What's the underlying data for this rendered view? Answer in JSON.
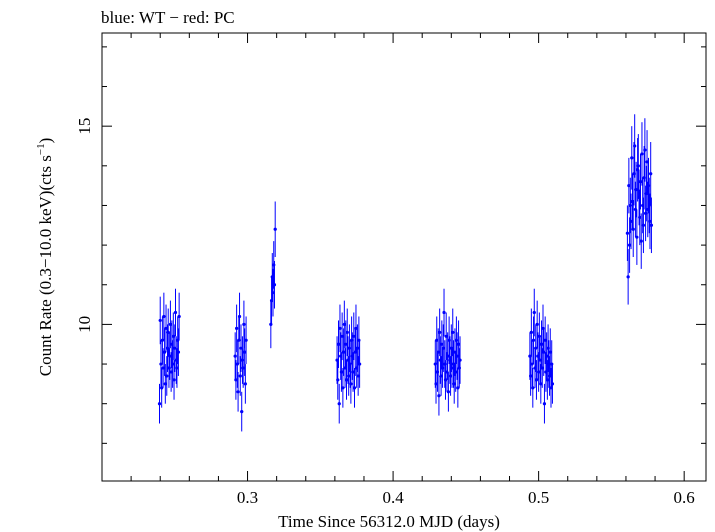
{
  "chart_data": {
    "type": "scatter",
    "title": "blue: WT − red: PC",
    "xlabel": "Time Since 56312.0 MJD (days)",
    "ylabel_main": "Count Rate (0.3−10.0 keV)(cts s",
    "ylabel_sup": "−1",
    "ylabel_tail": ")",
    "xlim": [
      0.2,
      0.615
    ],
    "ylim": [
      6.05,
      17.35
    ],
    "x_major_ticks": [
      0.3,
      0.4,
      0.5,
      0.6
    ],
    "x_tick_labels": [
      "0.3",
      "0.4",
      "0.5",
      "0.6"
    ],
    "y_major_ticks": [
      10,
      15
    ],
    "y_tick_labels": [
      "10",
      "15"
    ],
    "grid": false,
    "series": [
      {
        "color": "#0000ff",
        "points": [
          [
            0.2395,
            8.0,
            0.5
          ],
          [
            0.24,
            10.1,
            0.6
          ],
          [
            0.2405,
            9.0,
            0.6
          ],
          [
            0.241,
            8.4,
            0.5
          ],
          [
            0.2415,
            9.6,
            0.6
          ],
          [
            0.242,
            8.9,
            0.5
          ],
          [
            0.2425,
            10.2,
            0.6
          ],
          [
            0.243,
            9.3,
            0.6
          ],
          [
            0.2435,
            8.5,
            0.5
          ],
          [
            0.244,
            9.9,
            0.6
          ],
          [
            0.2445,
            8.7,
            0.5
          ],
          [
            0.245,
            9.4,
            0.6
          ],
          [
            0.2455,
            9.8,
            0.6
          ],
          [
            0.246,
            8.9,
            0.5
          ],
          [
            0.2465,
            9.2,
            0.6
          ],
          [
            0.247,
            10.0,
            0.6
          ],
          [
            0.2475,
            8.8,
            0.5
          ],
          [
            0.248,
            9.5,
            0.6
          ],
          [
            0.2485,
            9.0,
            0.6
          ],
          [
            0.249,
            9.7,
            0.6
          ],
          [
            0.2495,
            8.6,
            0.5
          ],
          [
            0.25,
            9.4,
            0.6
          ],
          [
            0.2505,
            10.3,
            0.6
          ],
          [
            0.251,
            9.1,
            0.6
          ],
          [
            0.2515,
            8.9,
            0.5
          ],
          [
            0.252,
            9.6,
            0.6
          ],
          [
            0.2525,
            9.3,
            0.6
          ],
          [
            0.253,
            10.2,
            0.6
          ],
          [
            0.2915,
            9.2,
            0.6
          ],
          [
            0.292,
            8.6,
            0.5
          ],
          [
            0.2925,
            9.9,
            0.6
          ],
          [
            0.293,
            9.0,
            0.6
          ],
          [
            0.2935,
            8.3,
            0.5
          ],
          [
            0.294,
            9.6,
            0.6
          ],
          [
            0.2945,
            10.2,
            0.6
          ],
          [
            0.295,
            8.7,
            0.5
          ],
          [
            0.2955,
            9.4,
            0.6
          ],
          [
            0.296,
            7.8,
            0.5
          ],
          [
            0.2965,
            9.1,
            0.6
          ],
          [
            0.297,
            8.9,
            0.5
          ],
          [
            0.2975,
            10.0,
            0.6
          ],
          [
            0.298,
            9.3,
            0.6
          ],
          [
            0.2985,
            8.5,
            0.5
          ],
          [
            0.299,
            9.6,
            0.6
          ],
          [
            0.316,
            10.0,
            0.6
          ],
          [
            0.3165,
            10.6,
            0.6
          ],
          [
            0.317,
            11.2,
            0.6
          ],
          [
            0.3175,
            10.8,
            0.6
          ],
          [
            0.318,
            11.5,
            0.6
          ],
          [
            0.3185,
            11.0,
            0.6
          ],
          [
            0.319,
            12.4,
            0.7
          ],
          [
            0.3615,
            9.1,
            0.6
          ],
          [
            0.362,
            8.6,
            0.5
          ],
          [
            0.3625,
            9.5,
            0.6
          ],
          [
            0.363,
            8.0,
            0.5
          ],
          [
            0.3635,
            9.9,
            0.6
          ],
          [
            0.364,
            9.2,
            0.6
          ],
          [
            0.3645,
            8.8,
            0.5
          ],
          [
            0.365,
            9.7,
            0.6
          ],
          [
            0.3655,
            8.4,
            0.5
          ],
          [
            0.366,
            9.3,
            0.6
          ],
          [
            0.3665,
            10.0,
            0.6
          ],
          [
            0.367,
            8.9,
            0.5
          ],
          [
            0.3675,
            9.5,
            0.6
          ],
          [
            0.368,
            8.6,
            0.5
          ],
          [
            0.3685,
            9.8,
            0.6
          ],
          [
            0.369,
            9.1,
            0.6
          ],
          [
            0.3695,
            8.7,
            0.5
          ],
          [
            0.37,
            9.4,
            0.6
          ],
          [
            0.3705,
            9.0,
            0.6
          ],
          [
            0.371,
            8.5,
            0.5
          ],
          [
            0.3715,
            9.6,
            0.6
          ],
          [
            0.372,
            9.2,
            0.6
          ],
          [
            0.3725,
            8.8,
            0.5
          ],
          [
            0.373,
            9.7,
            0.6
          ],
          [
            0.3735,
            8.4,
            0.5
          ],
          [
            0.374,
            9.3,
            0.6
          ],
          [
            0.3745,
            9.9,
            0.6
          ],
          [
            0.375,
            8.9,
            0.5
          ],
          [
            0.3755,
            9.4,
            0.6
          ],
          [
            0.376,
            8.7,
            0.5
          ],
          [
            0.3765,
            9.6,
            0.6
          ],
          [
            0.377,
            9.0,
            0.6
          ],
          [
            0.429,
            9.0,
            0.6
          ],
          [
            0.4295,
            8.5,
            0.5
          ],
          [
            0.43,
            9.6,
            0.6
          ],
          [
            0.4305,
            8.8,
            0.5
          ],
          [
            0.431,
            9.3,
            0.6
          ],
          [
            0.4315,
            8.2,
            0.5
          ],
          [
            0.432,
            9.8,
            0.6
          ],
          [
            0.4325,
            9.1,
            0.6
          ],
          [
            0.433,
            8.7,
            0.5
          ],
          [
            0.4335,
            9.5,
            0.6
          ],
          [
            0.434,
            8.9,
            0.5
          ],
          [
            0.4345,
            9.4,
            0.6
          ],
          [
            0.435,
            10.3,
            0.6
          ],
          [
            0.4355,
            9.0,
            0.6
          ],
          [
            0.436,
            8.6,
            0.5
          ],
          [
            0.4365,
            9.7,
            0.6
          ],
          [
            0.437,
            8.8,
            0.5
          ],
          [
            0.4375,
            9.2,
            0.6
          ],
          [
            0.438,
            8.3,
            0.5
          ],
          [
            0.4385,
            9.6,
            0.6
          ],
          [
            0.439,
            9.1,
            0.6
          ],
          [
            0.4395,
            8.7,
            0.5
          ],
          [
            0.44,
            9.4,
            0.6
          ],
          [
            0.4405,
            8.9,
            0.5
          ],
          [
            0.441,
            9.8,
            0.6
          ],
          [
            0.4415,
            9.0,
            0.6
          ],
          [
            0.442,
            8.5,
            0.5
          ],
          [
            0.4425,
            9.3,
            0.6
          ],
          [
            0.443,
            8.8,
            0.5
          ],
          [
            0.4435,
            9.6,
            0.6
          ],
          [
            0.444,
            9.2,
            0.6
          ],
          [
            0.4445,
            8.4,
            0.5
          ],
          [
            0.445,
            9.5,
            0.6
          ],
          [
            0.4455,
            8.9,
            0.5
          ],
          [
            0.446,
            9.1,
            0.6
          ],
          [
            0.494,
            9.2,
            0.6
          ],
          [
            0.4945,
            8.7,
            0.5
          ],
          [
            0.495,
            9.8,
            0.6
          ],
          [
            0.4955,
            9.0,
            0.6
          ],
          [
            0.496,
            8.4,
            0.5
          ],
          [
            0.4965,
            9.6,
            0.6
          ],
          [
            0.497,
            10.3,
            0.6
          ],
          [
            0.4975,
            8.9,
            0.5
          ],
          [
            0.498,
            9.4,
            0.6
          ],
          [
            0.4985,
            8.6,
            0.5
          ],
          [
            0.499,
            10.0,
            0.6
          ],
          [
            0.4995,
            9.2,
            0.6
          ],
          [
            0.5,
            8.8,
            0.5
          ],
          [
            0.5005,
            9.7,
            0.6
          ],
          [
            0.501,
            9.1,
            0.6
          ],
          [
            0.5015,
            8.5,
            0.5
          ],
          [
            0.502,
            9.5,
            0.6
          ],
          [
            0.5025,
            8.9,
            0.5
          ],
          [
            0.503,
            9.9,
            0.6
          ],
          [
            0.5035,
            9.3,
            0.6
          ],
          [
            0.504,
            8.0,
            0.5
          ],
          [
            0.5045,
            9.6,
            0.6
          ],
          [
            0.505,
            8.8,
            0.5
          ],
          [
            0.5055,
            9.2,
            0.6
          ],
          [
            0.506,
            8.6,
            0.5
          ],
          [
            0.5065,
            9.4,
            0.6
          ],
          [
            0.507,
            9.0,
            0.6
          ],
          [
            0.5075,
            8.7,
            0.5
          ],
          [
            0.508,
            9.3,
            0.6
          ],
          [
            0.5085,
            8.4,
            0.5
          ],
          [
            0.509,
            9.0,
            0.6
          ],
          [
            0.5095,
            8.5,
            0.5
          ],
          [
            0.561,
            12.3,
            0.7
          ],
          [
            0.5615,
            11.2,
            0.7
          ],
          [
            0.562,
            13.5,
            0.7
          ],
          [
            0.5625,
            12.0,
            0.7
          ],
          [
            0.563,
            13.0,
            0.7
          ],
          [
            0.5635,
            12.6,
            0.7
          ],
          [
            0.564,
            14.2,
            0.8
          ],
          [
            0.5645,
            13.1,
            0.7
          ],
          [
            0.565,
            12.4,
            0.7
          ],
          [
            0.5655,
            13.8,
            0.8
          ],
          [
            0.566,
            14.5,
            0.8
          ],
          [
            0.5665,
            12.9,
            0.7
          ],
          [
            0.567,
            13.4,
            0.7
          ],
          [
            0.5675,
            12.2,
            0.7
          ],
          [
            0.568,
            13.9,
            0.8
          ],
          [
            0.5685,
            14.0,
            0.8
          ],
          [
            0.569,
            13.2,
            0.7
          ],
          [
            0.5695,
            12.7,
            0.7
          ],
          [
            0.57,
            13.6,
            0.7
          ],
          [
            0.5705,
            12.1,
            0.7
          ],
          [
            0.571,
            14.3,
            0.8
          ],
          [
            0.5715,
            13.0,
            0.7
          ],
          [
            0.572,
            12.5,
            0.7
          ],
          [
            0.5725,
            13.7,
            0.8
          ],
          [
            0.573,
            14.4,
            0.8
          ],
          [
            0.5735,
            12.8,
            0.7
          ],
          [
            0.574,
            13.3,
            0.7
          ],
          [
            0.5745,
            14.1,
            0.8
          ],
          [
            0.575,
            12.9,
            0.7
          ],
          [
            0.5755,
            13.5,
            0.7
          ],
          [
            0.576,
            13.0,
            0.7
          ],
          [
            0.5765,
            12.6,
            0.7
          ],
          [
            0.577,
            13.8,
            0.8
          ],
          [
            0.5775,
            12.5,
            0.7
          ]
        ]
      }
    ]
  }
}
